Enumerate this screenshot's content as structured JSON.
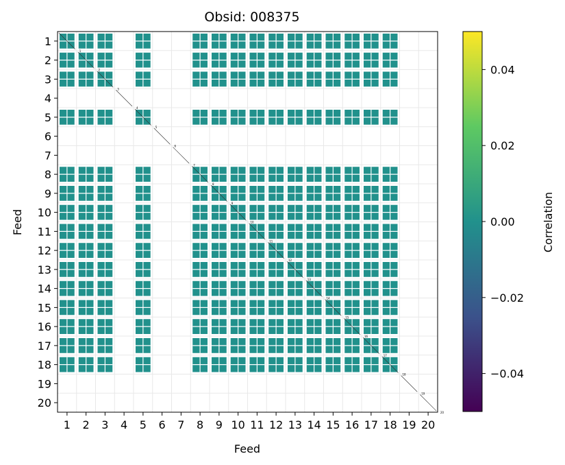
{
  "chart_data": {
    "type": "heatmap",
    "title": "Obsid: 008375",
    "xlabel": "Feed",
    "ylabel": "Feed",
    "feeds": [
      1,
      2,
      3,
      4,
      5,
      6,
      7,
      8,
      9,
      10,
      11,
      12,
      13,
      14,
      15,
      16,
      17,
      18,
      19,
      20
    ],
    "tick_labels": [
      "1",
      "2",
      "3",
      "4",
      "5",
      "6",
      "7",
      "8",
      "9",
      "10",
      "11",
      "12",
      "13",
      "14",
      "15",
      "16",
      "17",
      "18",
      "19",
      "20"
    ],
    "active_feeds": [
      1,
      2,
      3,
      5,
      8,
      9,
      10,
      11,
      12,
      13,
      14,
      15,
      16,
      17,
      18
    ],
    "correlation_value": 0.0,
    "grid": true,
    "colorbar": {
      "label": "Correlation",
      "range": [
        -0.05,
        0.05
      ],
      "ticks": [
        0.04,
        0.02,
        0.0,
        -0.02,
        -0.04
      ],
      "tick_labels": [
        "0.04",
        "0.02",
        "0.00",
        "−0.02",
        "−0.04"
      ]
    },
    "colors": {
      "cell": "#21918c",
      "grid": "#e8e8e8",
      "colormap": [
        "#440154",
        "#3b528b",
        "#21918c",
        "#5ec962",
        "#fde725"
      ]
    }
  }
}
